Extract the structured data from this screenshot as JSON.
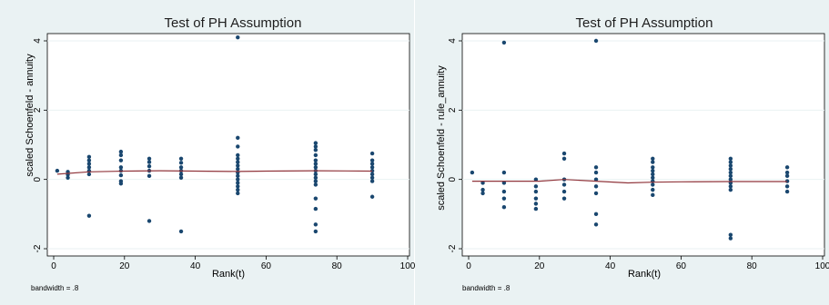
{
  "colors": {
    "panel_bg": "#eaf2f3",
    "plot_bg": "#ffffff",
    "point": "#1a476f",
    "smooth_line": "#90353b",
    "axis": "#000000",
    "grid": "#eaf2f3"
  },
  "chart_data": [
    {
      "type": "scatter",
      "title": "Test of PH Assumption",
      "xlabel": "Rank(t)",
      "ylabel": "scaled Schoenfeld - annuity",
      "note": "bandwidth = .8",
      "xlim": [
        0,
        100
      ],
      "ylim": [
        -2,
        4
      ],
      "xticks": [
        0,
        20,
        40,
        60,
        80,
        100
      ],
      "xtick_labels": [
        "0",
        "20",
        "40",
        "60",
        "80",
        "100"
      ],
      "yticks": [
        -2,
        0,
        2,
        4
      ],
      "ytick_labels": [
        "-2",
        "0",
        "2",
        "4"
      ],
      "grid": true,
      "points": [
        {
          "x": 1,
          "y": 0.25
        },
        {
          "x": 4,
          "y": 0.22
        },
        {
          "x": 4,
          "y": 0.14
        },
        {
          "x": 4,
          "y": 0.05
        },
        {
          "x": 10,
          "y": 0.65
        },
        {
          "x": 10,
          "y": 0.55
        },
        {
          "x": 10,
          "y": 0.45
        },
        {
          "x": 10,
          "y": 0.35
        },
        {
          "x": 10,
          "y": 0.25
        },
        {
          "x": 10,
          "y": 0.15
        },
        {
          "x": 10,
          "y": -1.05
        },
        {
          "x": 19,
          "y": 0.8
        },
        {
          "x": 19,
          "y": 0.7
        },
        {
          "x": 19,
          "y": 0.55
        },
        {
          "x": 19,
          "y": 0.35
        },
        {
          "x": 19,
          "y": 0.25
        },
        {
          "x": 19,
          "y": 0.12
        },
        {
          "x": 19,
          "y": -0.05
        },
        {
          "x": 19,
          "y": -0.12
        },
        {
          "x": 27,
          "y": 0.6
        },
        {
          "x": 27,
          "y": 0.5
        },
        {
          "x": 27,
          "y": 0.38
        },
        {
          "x": 27,
          "y": 0.25
        },
        {
          "x": 27,
          "y": 0.1
        },
        {
          "x": 27,
          "y": -1.2
        },
        {
          "x": 36,
          "y": 0.6
        },
        {
          "x": 36,
          "y": 0.48
        },
        {
          "x": 36,
          "y": 0.35
        },
        {
          "x": 36,
          "y": 0.25
        },
        {
          "x": 36,
          "y": 0.15
        },
        {
          "x": 36,
          "y": 0.05
        },
        {
          "x": 36,
          "y": -1.5
        },
        {
          "x": 52,
          "y": 4.1
        },
        {
          "x": 52,
          "y": 1.2
        },
        {
          "x": 52,
          "y": 0.95
        },
        {
          "x": 52,
          "y": 0.7
        },
        {
          "x": 52,
          "y": 0.6
        },
        {
          "x": 52,
          "y": 0.5
        },
        {
          "x": 52,
          "y": 0.4
        },
        {
          "x": 52,
          "y": 0.3
        },
        {
          "x": 52,
          "y": 0.2
        },
        {
          "x": 52,
          "y": 0.1
        },
        {
          "x": 52,
          "y": 0.0
        },
        {
          "x": 52,
          "y": -0.1
        },
        {
          "x": 52,
          "y": -0.2
        },
        {
          "x": 52,
          "y": -0.3
        },
        {
          "x": 52,
          "y": -0.4
        },
        {
          "x": 74,
          "y": 1.05
        },
        {
          "x": 74,
          "y": 0.95
        },
        {
          "x": 74,
          "y": 0.85
        },
        {
          "x": 74,
          "y": 0.7
        },
        {
          "x": 74,
          "y": 0.55
        },
        {
          "x": 74,
          "y": 0.45
        },
        {
          "x": 74,
          "y": 0.35
        },
        {
          "x": 74,
          "y": 0.25
        },
        {
          "x": 74,
          "y": 0.15
        },
        {
          "x": 74,
          "y": 0.05
        },
        {
          "x": 74,
          "y": -0.05
        },
        {
          "x": 74,
          "y": -0.15
        },
        {
          "x": 74,
          "y": -0.55
        },
        {
          "x": 74,
          "y": -0.85
        },
        {
          "x": 74,
          "y": -1.3
        },
        {
          "x": 74,
          "y": -1.5
        },
        {
          "x": 90,
          "y": 0.75
        },
        {
          "x": 90,
          "y": 0.55
        },
        {
          "x": 90,
          "y": 0.45
        },
        {
          "x": 90,
          "y": 0.35
        },
        {
          "x": 90,
          "y": 0.25
        },
        {
          "x": 90,
          "y": 0.15
        },
        {
          "x": 90,
          "y": 0.05
        },
        {
          "x": 90,
          "y": -0.05
        },
        {
          "x": 90,
          "y": -0.5
        }
      ],
      "smooth_line": [
        {
          "x": 1,
          "y": 0.15
        },
        {
          "x": 10,
          "y": 0.22
        },
        {
          "x": 20,
          "y": 0.24
        },
        {
          "x": 30,
          "y": 0.25
        },
        {
          "x": 40,
          "y": 0.24
        },
        {
          "x": 52,
          "y": 0.23
        },
        {
          "x": 60,
          "y": 0.24
        },
        {
          "x": 74,
          "y": 0.25
        },
        {
          "x": 90,
          "y": 0.24
        }
      ]
    },
    {
      "type": "scatter",
      "title": "Test of PH Assumption",
      "xlabel": "Rank(t)",
      "ylabel": "scaled Schoenfeld - rule_annuity",
      "note": "bandwidth = .8",
      "xlim": [
        0,
        100
      ],
      "ylim": [
        -2,
        4
      ],
      "xticks": [
        0,
        20,
        40,
        60,
        80,
        100
      ],
      "xtick_labels": [
        "0",
        "20",
        "40",
        "60",
        "80",
        "100"
      ],
      "yticks": [
        -2,
        0,
        2,
        4
      ],
      "ytick_labels": [
        "-2",
        "0",
        "2",
        "4"
      ],
      "grid": true,
      "points": [
        {
          "x": 1,
          "y": 0.2
        },
        {
          "x": 4,
          "y": -0.1
        },
        {
          "x": 4,
          "y": -0.3
        },
        {
          "x": 4,
          "y": -0.4
        },
        {
          "x": 10,
          "y": 3.95
        },
        {
          "x": 10,
          "y": 0.2
        },
        {
          "x": 10,
          "y": -0.1
        },
        {
          "x": 10,
          "y": -0.35
        },
        {
          "x": 10,
          "y": -0.55
        },
        {
          "x": 10,
          "y": -0.8
        },
        {
          "x": 19,
          "y": 0.0
        },
        {
          "x": 19,
          "y": -0.2
        },
        {
          "x": 19,
          "y": -0.35
        },
        {
          "x": 19,
          "y": -0.55
        },
        {
          "x": 19,
          "y": -0.7
        },
        {
          "x": 19,
          "y": -0.85
        },
        {
          "x": 27,
          "y": 0.75
        },
        {
          "x": 27,
          "y": 0.6
        },
        {
          "x": 27,
          "y": 0.0
        },
        {
          "x": 27,
          "y": -0.15
        },
        {
          "x": 27,
          "y": -0.35
        },
        {
          "x": 27,
          "y": -0.55
        },
        {
          "x": 36,
          "y": 4.0
        },
        {
          "x": 36,
          "y": 0.35
        },
        {
          "x": 36,
          "y": 0.2
        },
        {
          "x": 36,
          "y": 0.0
        },
        {
          "x": 36,
          "y": -0.2
        },
        {
          "x": 36,
          "y": -0.4
        },
        {
          "x": 36,
          "y": -1.0
        },
        {
          "x": 36,
          "y": -1.3
        },
        {
          "x": 52,
          "y": 0.6
        },
        {
          "x": 52,
          "y": 0.5
        },
        {
          "x": 52,
          "y": 0.35
        },
        {
          "x": 52,
          "y": 0.25
        },
        {
          "x": 52,
          "y": 0.15
        },
        {
          "x": 52,
          "y": 0.05
        },
        {
          "x": 52,
          "y": -0.05
        },
        {
          "x": 52,
          "y": -0.15
        },
        {
          "x": 52,
          "y": -0.3
        },
        {
          "x": 52,
          "y": -0.45
        },
        {
          "x": 74,
          "y": 0.6
        },
        {
          "x": 74,
          "y": 0.5
        },
        {
          "x": 74,
          "y": 0.4
        },
        {
          "x": 74,
          "y": 0.3
        },
        {
          "x": 74,
          "y": 0.2
        },
        {
          "x": 74,
          "y": 0.1
        },
        {
          "x": 74,
          "y": 0.0
        },
        {
          "x": 74,
          "y": -0.1
        },
        {
          "x": 74,
          "y": -0.2
        },
        {
          "x": 74,
          "y": -0.3
        },
        {
          "x": 74,
          "y": -1.6
        },
        {
          "x": 74,
          "y": -1.7
        },
        {
          "x": 90,
          "y": 0.35
        },
        {
          "x": 90,
          "y": 0.2
        },
        {
          "x": 90,
          "y": 0.1
        },
        {
          "x": 90,
          "y": -0.05
        },
        {
          "x": 90,
          "y": -0.2
        },
        {
          "x": 90,
          "y": -0.35
        }
      ],
      "smooth_line": [
        {
          "x": 1,
          "y": -0.05
        },
        {
          "x": 10,
          "y": -0.05
        },
        {
          "x": 20,
          "y": -0.05
        },
        {
          "x": 27,
          "y": 0.0
        },
        {
          "x": 36,
          "y": -0.05
        },
        {
          "x": 45,
          "y": -0.1
        },
        {
          "x": 52,
          "y": -0.08
        },
        {
          "x": 60,
          "y": -0.07
        },
        {
          "x": 74,
          "y": -0.06
        },
        {
          "x": 90,
          "y": -0.06
        }
      ]
    }
  ]
}
